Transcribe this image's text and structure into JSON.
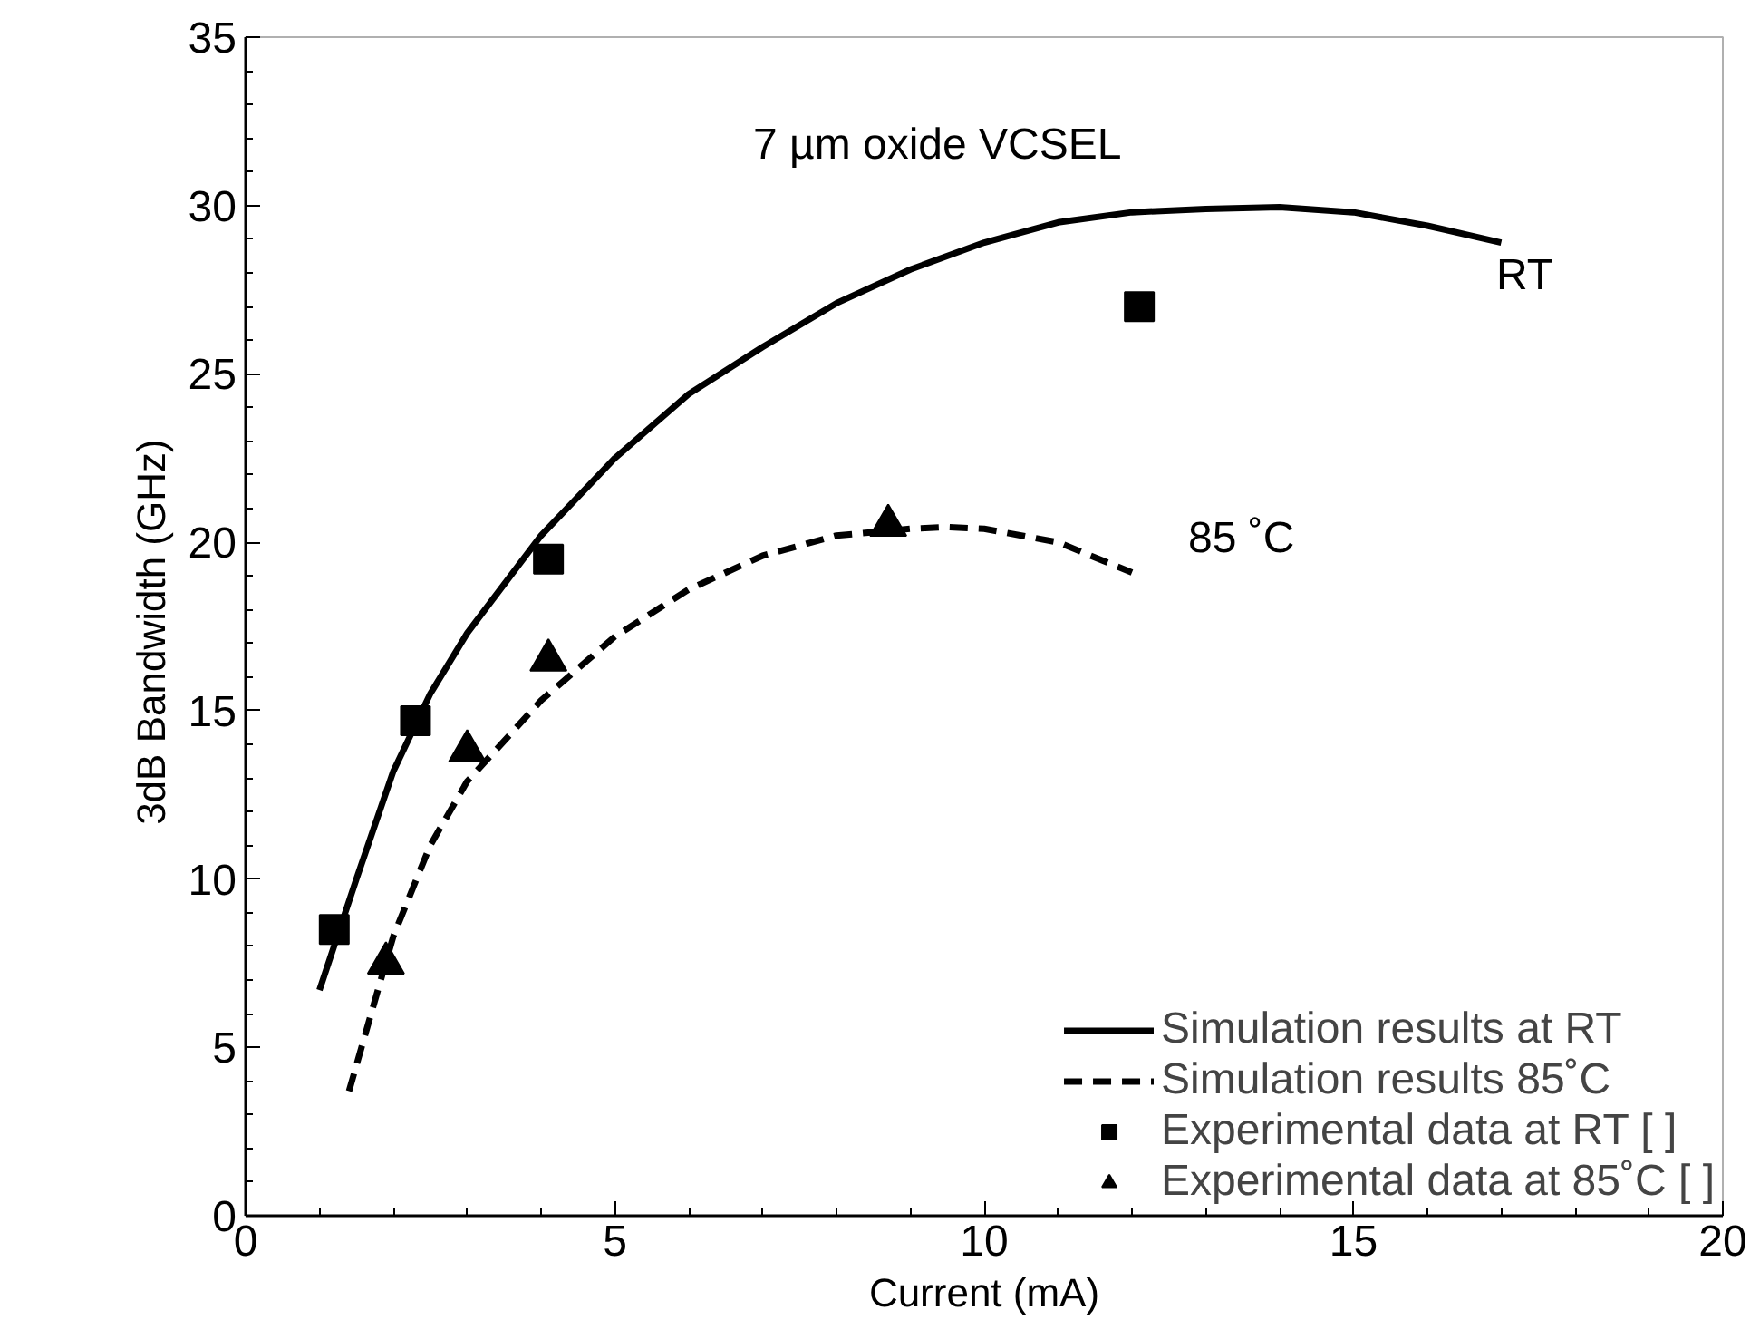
{
  "chart_data": {
    "type": "line",
    "xlabel": "Current (mA)",
    "ylabel": "3dB Bandwidth  (GHz)",
    "xlim": [
      0,
      20
    ],
    "xticks": [
      0,
      5,
      10,
      15,
      20
    ],
    "ylim": [
      0,
      35
    ],
    "yticks": [
      0,
      5,
      10,
      15,
      20,
      25,
      30,
      35
    ],
    "grid": false,
    "legend": "bottom right",
    "annotations": [
      "7 µm oxide VCSEL",
      "RT",
      "85 ˚C"
    ],
    "series": [
      {
        "name": "Simulation results at RT",
        "color": "#000000",
        "line_style": "solid",
        "marker": "none",
        "x": [
          1,
          1.5,
          2,
          2.5,
          3,
          4,
          5,
          6,
          7,
          8,
          9,
          10,
          11,
          12,
          13,
          14,
          15,
          16,
          17
        ],
        "values": [
          6.7,
          10,
          13.2,
          15.5,
          17.3,
          20.2,
          22.5,
          24.4,
          25.8,
          27.1,
          28.1,
          28.9,
          29.5,
          29.8,
          29.9,
          29.95,
          29.8,
          29.4,
          28.9
        ]
      },
      {
        "name": "Simulation results 85˚C",
        "color": "#000000",
        "line_style": "dashed",
        "marker": "none",
        "x": [
          1.4,
          1.7,
          2,
          2.5,
          3,
          4,
          5,
          6,
          7,
          8,
          9,
          9.5,
          10,
          11,
          12
        ],
        "values": [
          3.7,
          6,
          8.3,
          11,
          12.9,
          15.3,
          17.2,
          18.6,
          19.6,
          20.2,
          20.4,
          20.45,
          20.4,
          20,
          19.1
        ]
      },
      {
        "name": "Experimental data at RT [ ]",
        "type": "scatter",
        "color": "#000000",
        "marker": "square",
        "x": [
          1.2,
          2.3,
          4.1,
          12.1
        ],
        "values": [
          8.5,
          14.7,
          19.5,
          27
        ]
      },
      {
        "name": "Experimental data at 85˚C [ ]",
        "type": "scatter",
        "color": "#000000",
        "marker": "triangle",
        "x": [
          1.9,
          3,
          4.1,
          8.7
        ],
        "values": [
          7.5,
          13.8,
          16.5,
          20.5
        ]
      }
    ]
  }
}
